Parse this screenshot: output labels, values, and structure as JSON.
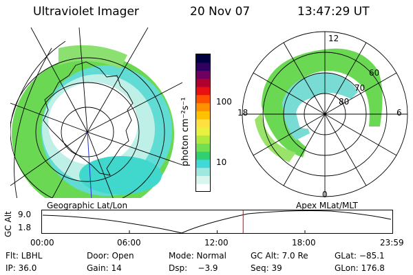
{
  "header": {
    "instrument": "Ultraviolet Imager",
    "date": "20 Nov 07",
    "time": "13:47:29 UT"
  },
  "colorbar": {
    "units": "photon cm⁻²s⁻¹",
    "ticks": [
      "100",
      "10"
    ],
    "colors": [
      "#ffffff",
      "#d8f5ee",
      "#9fe8e0",
      "#40d8d8",
      "#30d070",
      "#70e050",
      "#b0e840",
      "#e8f040",
      "#ffe040",
      "#ffc000",
      "#ff9000",
      "#ff5000",
      "#e81010",
      "#b00030",
      "#700060",
      "#300060",
      "#000040"
    ]
  },
  "polar_plot": {
    "hour_labels": {
      "top": "12",
      "left": "18",
      "right": "6",
      "bottom": "0"
    },
    "lat_labels": [
      "60",
      "70",
      "80"
    ]
  },
  "strip": {
    "left_label": "Geographic Lat/Lon",
    "right_label": "Apex MLat/MLT",
    "axis_title": "GC Alt",
    "ytick_top": "9.0",
    "ytick_bottom": "1.8",
    "time_ticks": [
      "00:00",
      "06:00",
      "12:00",
      "18:00",
      "23:59"
    ],
    "current_time_fraction": 0.574
  },
  "info": {
    "filter": "Flt: LBHL",
    "door": "Door: Open",
    "mode": "Mode: Normal",
    "gc_alt": "GC Alt: 7.0 Re",
    "glat": "GLat: −85.1",
    "ip": "IP: 36.0",
    "gain": "Gain: 14",
    "dsp": "Dsp:    −3.9",
    "seq": "Seq: 39",
    "glon": "GLon: 176.8"
  }
}
